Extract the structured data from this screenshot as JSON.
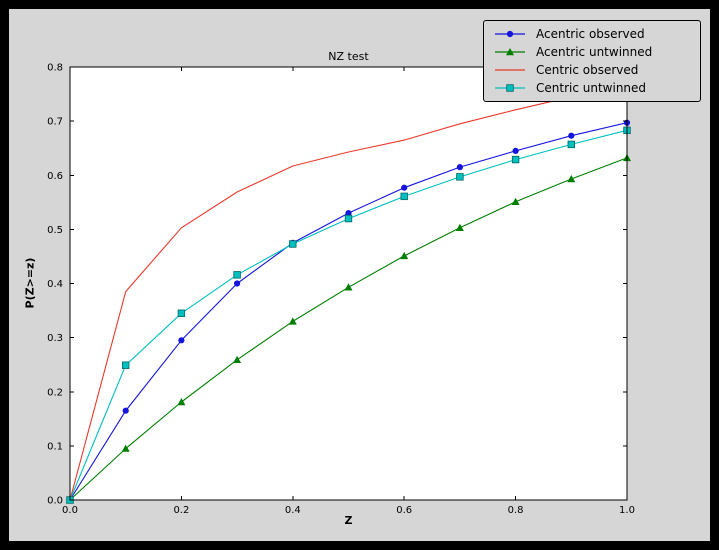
{
  "colors": {
    "window_bg": "#000000",
    "figure_bg": "#d6d6d6",
    "axes_bg": "#ffffff",
    "legend_bg": "#d6d6d6",
    "axis_color": "#000000"
  },
  "chart_data": {
    "type": "line",
    "title": "NZ test",
    "xlabel": "Z",
    "ylabel": "P(Z>=z)",
    "xlim": [
      0.0,
      1.0
    ],
    "ylim": [
      0.0,
      0.8
    ],
    "xticks": [
      0.0,
      0.2,
      0.4,
      0.6,
      0.8,
      1.0
    ],
    "xtick_labels": [
      "0.0",
      "0.2",
      "0.4",
      "0.6",
      "0.8",
      "1.0"
    ],
    "yticks": [
      0.0,
      0.1,
      0.2,
      0.3,
      0.4,
      0.5,
      0.6,
      0.7,
      0.8
    ],
    "ytick_labels": [
      "0.0",
      "0.1",
      "0.2",
      "0.3",
      "0.4",
      "0.5",
      "0.6",
      "0.7",
      "0.8"
    ],
    "grid": false,
    "legend_position": "upper right",
    "x": [
      0.0,
      0.1,
      0.2,
      0.3,
      0.4,
      0.5,
      0.6,
      0.7,
      0.8,
      0.9,
      1.0
    ],
    "series": [
      {
        "name": "Acentric observed",
        "color": "#1414dd",
        "marker": "circle",
        "values": [
          0.0,
          0.165,
          0.295,
          0.4,
          0.475,
          0.53,
          0.577,
          0.615,
          0.645,
          0.673,
          0.697
        ]
      },
      {
        "name": "Acentric untwinned",
        "color": "#007f00",
        "marker": "triangle",
        "values": [
          0.0,
          0.095,
          0.181,
          0.259,
          0.33,
          0.393,
          0.451,
          0.503,
          0.551,
          0.593,
          0.632
        ]
      },
      {
        "name": "Centric observed",
        "color": "#e8392b",
        "marker": "none",
        "values": [
          0.0,
          0.385,
          0.503,
          0.569,
          0.617,
          0.643,
          0.665,
          0.695,
          0.721,
          0.745,
          0.76
        ]
      },
      {
        "name": "Centric untwinned",
        "color": "#00bfbf",
        "marker": "square",
        "values": [
          0.0,
          0.249,
          0.345,
          0.416,
          0.473,
          0.52,
          0.561,
          0.597,
          0.629,
          0.657,
          0.683
        ]
      }
    ]
  }
}
